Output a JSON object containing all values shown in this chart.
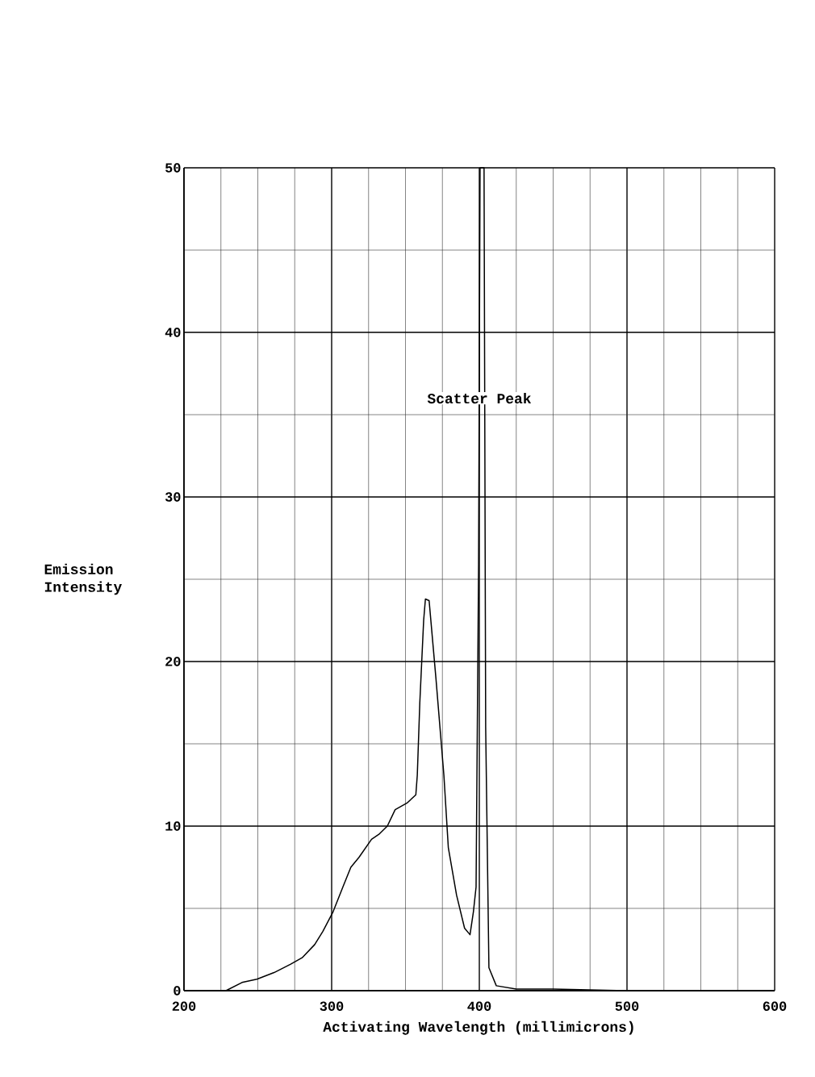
{
  "chart_data": {
    "type": "line",
    "xlabel": "Activating Wavelength (millimicrons)",
    "ylabel": "Emission Intensity",
    "x": [
      200,
      228.4,
      239.3,
      249.4,
      261,
      272,
      280,
      288.5,
      294,
      301,
      307.6,
      313,
      318.5,
      327,
      332,
      337.7,
      343,
      351,
      357,
      358,
      359.7,
      362.3,
      363.5,
      366,
      370.6,
      376,
      379,
      384.6,
      390,
      393.7,
      396,
      397.8,
      399.5,
      400.5,
      403.2,
      404.3,
      406.5,
      411.5,
      425,
      450,
      500,
      600
    ],
    "series": [
      {
        "color": "#000000",
        "values": [
          0,
          0,
          0.5,
          0.7,
          1.1,
          1.6,
          2.0,
          2.8,
          3.6,
          4.8,
          6.3,
          7.5,
          8.1,
          9.2,
          9.5,
          10.0,
          11.0,
          11.4,
          11.9,
          13.1,
          17.5,
          22.5,
          23.8,
          23.7,
          19.0,
          13.1,
          8.7,
          5.8,
          3.8,
          3.4,
          4.8,
          6.3,
          25.9,
          50,
          50,
          16,
          1.4,
          0.3,
          0.1,
          0.1,
          0,
          0
        ]
      }
    ],
    "xlim": [
      200,
      600
    ],
    "ylim": [
      0,
      50
    ],
    "xticks": [
      200,
      300,
      400,
      500,
      600
    ],
    "yticks": [
      0,
      10,
      20,
      30,
      40,
      50
    ],
    "grid": true,
    "marker": "none",
    "line_style": "solid",
    "annotations": [
      {
        "text": "Scatter Peak",
        "x": 400,
        "y": 36
      }
    ]
  }
}
